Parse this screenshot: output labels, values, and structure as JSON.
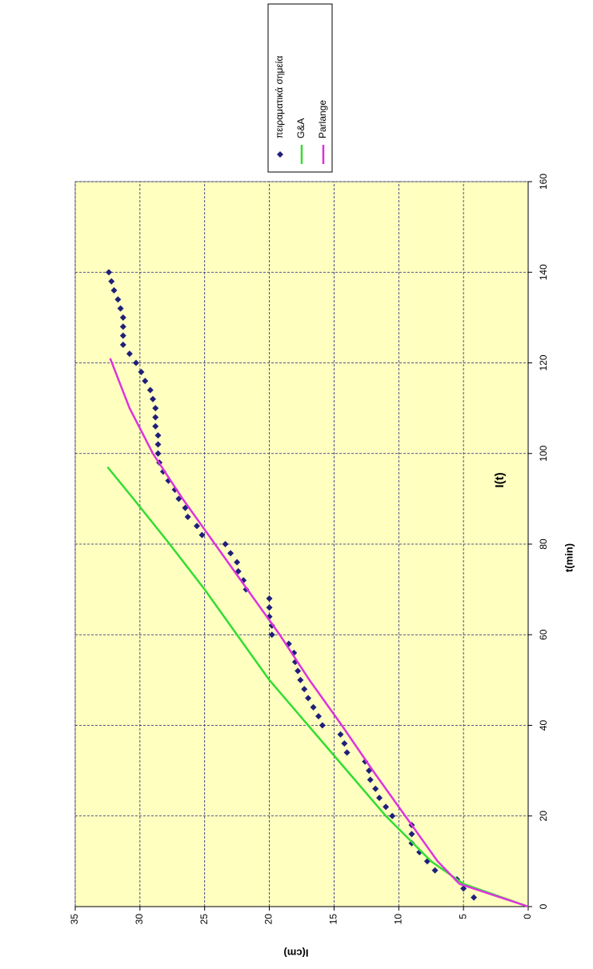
{
  "chart_data": {
    "type": "scatter",
    "title": "I(t)",
    "x_label": "t(min)",
    "y_label": "I(cm)",
    "xlim": [
      0,
      160
    ],
    "ylim": [
      0,
      35
    ],
    "xticks": [
      0,
      20,
      40,
      60,
      80,
      100,
      120,
      140,
      160
    ],
    "yticks": [
      0,
      5,
      10,
      15,
      20,
      25,
      30,
      35
    ],
    "grid": true,
    "legend": "right",
    "background": "#ffffc0",
    "series": [
      {
        "name": "πειραματικά σημεία",
        "color": "#1f1f7a",
        "mode": "markers",
        "x": [
          2,
          4,
          6,
          8,
          10,
          12,
          14,
          16,
          18,
          20,
          22,
          24,
          26,
          28,
          30,
          32,
          34,
          36,
          38,
          40,
          42,
          44,
          46,
          48,
          50,
          52,
          54,
          56,
          58,
          60,
          62,
          64,
          66,
          68,
          70,
          72,
          74,
          76,
          78,
          80,
          82,
          84,
          86,
          88,
          90,
          92,
          94,
          96,
          98,
          100,
          102,
          104,
          106,
          108,
          110,
          112,
          114,
          116,
          118,
          120,
          122,
          124,
          126,
          128,
          130,
          132,
          134,
          136,
          138,
          140
        ],
        "y": [
          4.2,
          5.0,
          5.5,
          7.2,
          7.8,
          8.4,
          9.0,
          9.0,
          9.0,
          10.5,
          11.0,
          11.5,
          11.8,
          12.2,
          12.3,
          12.6,
          14.0,
          14.2,
          14.5,
          15.9,
          16.2,
          16.6,
          17.0,
          17.3,
          17.6,
          17.8,
          18.0,
          18.1,
          18.5,
          19.8,
          19.8,
          20.0,
          20.0,
          20.0,
          21.8,
          22.0,
          22.4,
          22.5,
          23.0,
          23.4,
          25.2,
          25.6,
          26.3,
          26.5,
          27.0,
          27.3,
          27.8,
          28.2,
          28.5,
          28.6,
          28.6,
          28.6,
          28.8,
          28.8,
          28.8,
          29.0,
          29.2,
          29.6,
          29.9,
          30.3,
          30.8,
          31.3,
          31.3,
          31.3,
          31.3,
          31.5,
          31.7,
          32.0,
          32.2,
          32.4
        ]
      },
      {
        "name": "G&A",
        "color": "#33dd33",
        "mode": "line",
        "x": [
          0,
          5,
          10,
          20,
          30,
          40,
          50,
          60,
          70,
          80,
          90,
          97
        ],
        "y": [
          0,
          5,
          7.5,
          11,
          14,
          17,
          20,
          22.5,
          25,
          27.7,
          30.5,
          32.5
        ]
      },
      {
        "name": "Parlange",
        "color": "#dd33dd",
        "mode": "line",
        "x": [
          0,
          5,
          10,
          20,
          30,
          40,
          50,
          60,
          70,
          80,
          90,
          100,
          110,
          121
        ],
        "y": [
          0,
          5.3,
          7,
          9.5,
          12,
          14.4,
          16.9,
          19.2,
          21.7,
          24.2,
          26.7,
          29,
          30.8,
          32.3
        ]
      }
    ]
  }
}
